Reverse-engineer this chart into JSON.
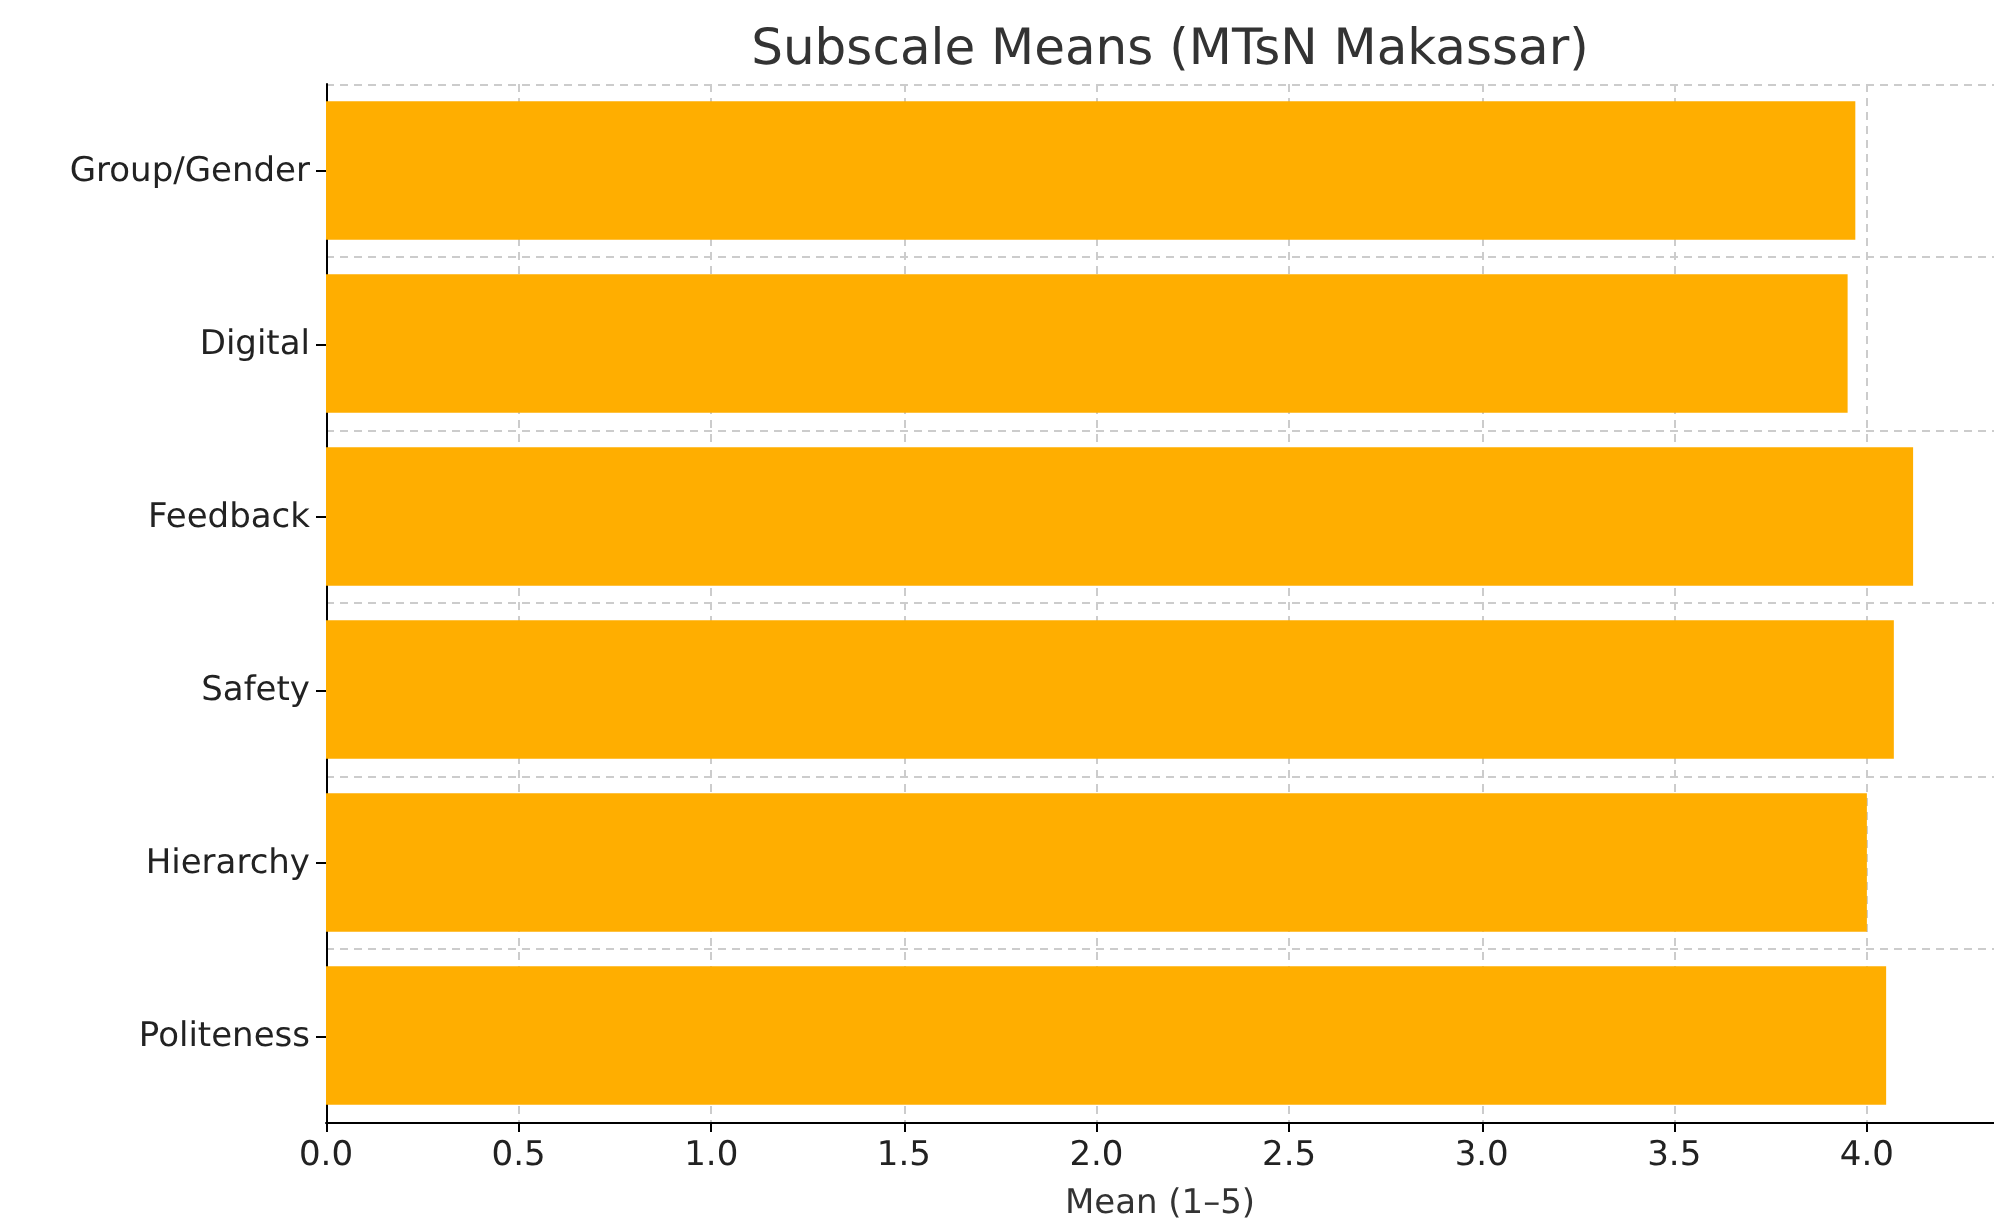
{
  "chart_data": {
    "type": "bar",
    "orientation": "horizontal",
    "title": "Subscale Means (MTsN Makassar)",
    "xlabel": "Mean (1–5)",
    "categories": [
      "Group/Gender",
      "Digital",
      "Feedback",
      "Safety",
      "Hierarchy",
      "Politeness"
    ],
    "values": [
      3.97,
      3.95,
      4.12,
      4.07,
      4.0,
      4.05
    ],
    "color": "#ffae00",
    "xlim": [
      0,
      4.33
    ],
    "xticks": [
      {
        "value": 0,
        "label": "0.0"
      },
      {
        "value": 0.5,
        "label": "0.5"
      },
      {
        "value": 1,
        "label": "1.0"
      },
      {
        "value": 1.5,
        "label": "1.5"
      },
      {
        "value": 2,
        "label": "2.0"
      },
      {
        "value": 2.5,
        "label": "2.5"
      },
      {
        "value": 3,
        "label": "3.0"
      },
      {
        "value": 3.5,
        "label": "3.5"
      },
      {
        "value": 4,
        "label": "4.0"
      }
    ],
    "grid": true
  }
}
